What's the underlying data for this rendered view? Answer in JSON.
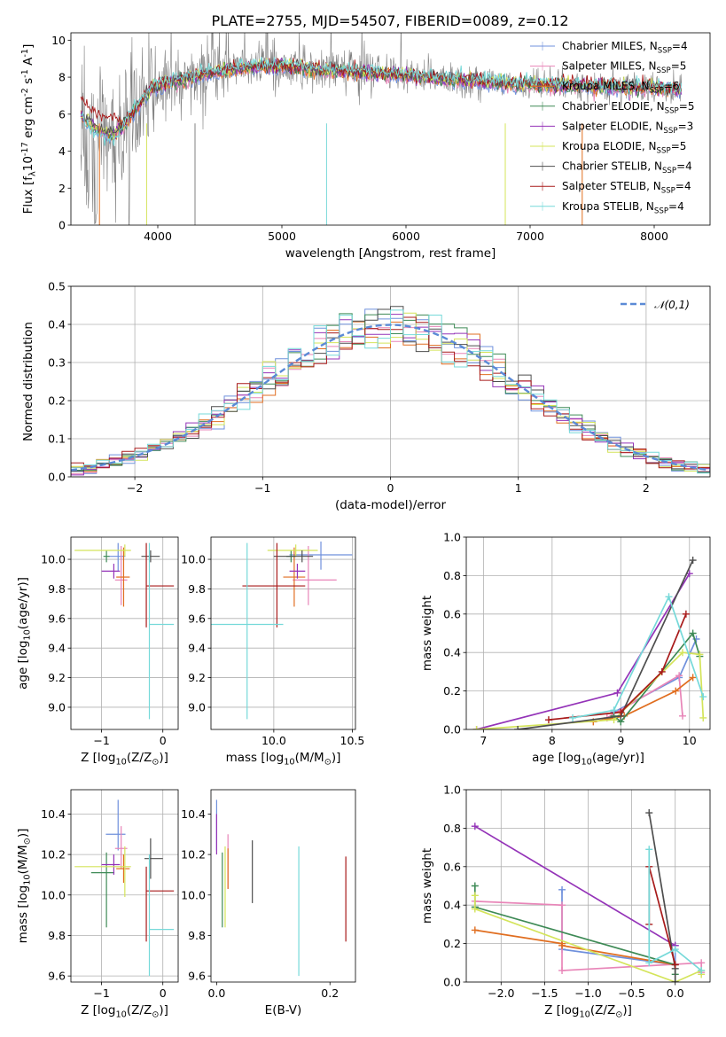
{
  "colors": {
    "Chabrier MILES": "#6f90dc",
    "Salpeter MILES": "#e885b8",
    "Kroupa MILES": "#e06e20",
    "Chabrier ELODIE": "#3e8a56",
    "Salpeter ELODIE": "#9433b8",
    "Kroupa ELODIE": "#d4e45a",
    "Chabrier STELIB": "#4e4e4e",
    "Salpeter STELIB": "#a81a1a",
    "Kroupa STELIB": "#76d9d9"
  },
  "chart_data": [
    {
      "id": "spectrum",
      "type": "line",
      "title": "PLATE=2755, MJD=54507, FIBERID=0089, z=0.12",
      "xlabel": "wavelength [Angstrom, rest frame]",
      "ylabel": "Flux [f$_\\lambda$10$^{-17}$ erg cm$^{-2}$ s$^{-1}$ A$^{-1}$]",
      "xlim": [
        3300,
        8450
      ],
      "ylim": [
        0,
        10.4
      ],
      "xticks": [
        4000,
        5000,
        6000,
        7000,
        8000
      ],
      "yticks": [
        0,
        2,
        4,
        6,
        8,
        10
      ],
      "grid": false,
      "legend": "upper-right",
      "data_color": "#808080",
      "data_range": [
        3380,
        8220
      ],
      "model_continuum": {
        "x": [
          3380,
          3500,
          3650,
          3800,
          3950,
          4050,
          4200,
          4400,
          4600,
          4800,
          5000,
          5300,
          5600,
          6000,
          6500,
          7000,
          7500,
          8000,
          8220
        ],
        "y": [
          5.8,
          5.0,
          4.7,
          6.1,
          7.4,
          7.6,
          7.9,
          8.2,
          8.4,
          8.6,
          8.6,
          8.4,
          8.3,
          8.1,
          7.8,
          7.6,
          7.5,
          7.4,
          7.3
        ]
      },
      "series": [
        {
          "name": "Chabrier MILES, N$_{SSP}$=4"
        },
        {
          "name": "Salpeter MILES, N$_{SSP}$=5"
        },
        {
          "name": "Kroupa MILES, N$_{SSP}$=6"
        },
        {
          "name": "Chabrier ELODIE, N$_{SSP}$=5"
        },
        {
          "name": "Salpeter ELODIE, N$_{SSP}$=3"
        },
        {
          "name": "Kroupa ELODIE, N$_{SSP}$=5"
        },
        {
          "name": "Chabrier STELIB, N$_{SSP}$=4"
        },
        {
          "name": "Salpeter STELIB, N$_{SSP}$=4"
        },
        {
          "name": "Kroupa STELIB, N$_{SSP}$=4"
        }
      ]
    },
    {
      "id": "residuals",
      "type": "histogram",
      "xlabel": "(data-model)/error",
      "ylabel": "Normed distribution",
      "xlim": [
        -2.5,
        2.5
      ],
      "ylim": [
        0,
        0.5
      ],
      "xticks": [
        -2,
        -1,
        0,
        1,
        2
      ],
      "yticks": [
        0.0,
        0.1,
        0.2,
        0.3,
        0.4,
        0.5
      ],
      "grid": true,
      "legend": "upper-right",
      "reference": {
        "name": "$\\mathcal{N}(0,1)$",
        "mean": 0,
        "sigma": 1,
        "color": "#5b8ad6"
      },
      "bin_width": 0.1
    },
    {
      "id": "age-vs-Z",
      "type": "errorbar",
      "xlabel": "Z [log$_{10}$($Z/Z_\\odot$)]",
      "ylabel": "age  [log$_{10}$($age/yr$)]",
      "xlim": [
        -1.5,
        0.25
      ],
      "ylim": [
        8.85,
        10.15
      ],
      "xticks": [
        -1,
        0
      ],
      "yticks": [
        9.0,
        9.2,
        9.4,
        9.6,
        9.8,
        10.0
      ],
      "grid": true,
      "points": [
        {
          "series": "Chabrier MILES",
          "x": -0.73,
          "xerr": [
            0.15,
            0.12
          ],
          "y": 10.02,
          "yerr": [
            0.1,
            0.09
          ]
        },
        {
          "series": "Salpeter MILES",
          "x": -0.68,
          "xerr": [
            0.1,
            0.1
          ],
          "y": 9.86,
          "yerr": [
            0.17,
            0.23
          ]
        },
        {
          "series": "Kroupa MILES",
          "x": -0.64,
          "xerr": [
            0.12,
            0.1
          ],
          "y": 9.88,
          "yerr": [
            0.2,
            0.2
          ]
        },
        {
          "series": "Chabrier ELODIE",
          "x": -0.92,
          "xerr": [
            0.05,
            0.05
          ],
          "y": 10.02,
          "yerr": [
            0.04,
            0.04
          ]
        },
        {
          "series": "Salpeter ELODIE",
          "x": -0.8,
          "xerr": [
            0.2,
            0.1
          ],
          "y": 9.92,
          "yerr": [
            0.05,
            0.05
          ]
        },
        {
          "series": "Kroupa ELODIE",
          "x": -0.62,
          "xerr": [
            0.82,
            0.1
          ],
          "y": 10.06,
          "yerr": [
            0.04,
            0.04
          ]
        },
        {
          "series": "Chabrier STELIB",
          "x": -0.2,
          "xerr": [
            0.15,
            0.15
          ],
          "y": 10.02,
          "yerr": [
            0.04,
            0.04
          ]
        },
        {
          "series": "Salpeter STELIB",
          "x": -0.27,
          "xerr": [
            0.0,
            0.45
          ],
          "y": 9.82,
          "yerr": [
            0.28,
            0.29
          ]
        },
        {
          "series": "Kroupa STELIB",
          "x": -0.22,
          "xerr": [
            0.0,
            0.4
          ],
          "y": 9.56,
          "yerr": [
            0.64,
            0.55
          ]
        }
      ]
    },
    {
      "id": "age-vs-mass",
      "type": "errorbar",
      "xlabel": "mass [log$_{10}$($M/M_\\odot$)]",
      "ylabel": "",
      "xlim": [
        9.6,
        10.52
      ],
      "ylim": [
        8.85,
        10.15
      ],
      "xticks": [
        10.0,
        10.5
      ],
      "yticks": [
        9.0,
        9.2,
        9.4,
        9.6,
        9.8,
        10.0
      ],
      "grid": true,
      "points": [
        {
          "series": "Chabrier MILES",
          "x": 10.3,
          "xerr": [
            0.2,
            0.2
          ],
          "y": 10.03,
          "yerr": [
            0.1,
            0.09
          ]
        },
        {
          "series": "Salpeter MILES",
          "x": 10.22,
          "xerr": [
            0.1,
            0.18
          ],
          "y": 9.86,
          "yerr": [
            0.17,
            0.23
          ]
        },
        {
          "series": "Kroupa MILES",
          "x": 10.13,
          "xerr": [
            0.07,
            0.07
          ],
          "y": 9.88,
          "yerr": [
            0.2,
            0.2
          ]
        },
        {
          "series": "Chabrier ELODIE",
          "x": 10.11,
          "xerr": [
            0.03,
            0.03
          ],
          "y": 10.02,
          "yerr": [
            0.04,
            0.04
          ]
        },
        {
          "series": "Salpeter ELODIE",
          "x": 10.15,
          "xerr": [
            0.05,
            0.05
          ],
          "y": 9.92,
          "yerr": [
            0.05,
            0.05
          ]
        },
        {
          "series": "Kroupa ELODIE",
          "x": 10.14,
          "xerr": [
            0.18,
            0.14
          ],
          "y": 10.06,
          "yerr": [
            0.04,
            0.04
          ]
        },
        {
          "series": "Chabrier STELIB",
          "x": 10.18,
          "xerr": [
            0.18,
            0.07
          ],
          "y": 10.02,
          "yerr": [
            0.04,
            0.04
          ]
        },
        {
          "series": "Salpeter STELIB",
          "x": 10.02,
          "xerr": [
            0.22,
            0.18
          ],
          "y": 9.82,
          "yerr": [
            0.28,
            0.29
          ]
        },
        {
          "series": "Kroupa STELIB",
          "x": 9.83,
          "xerr": [
            0.23,
            0.23
          ],
          "y": 9.56,
          "yerr": [
            0.64,
            0.55
          ]
        }
      ]
    },
    {
      "id": "weight-vs-age",
      "type": "line",
      "xlabel": "age  [log$_{10}$($age/yr$)]",
      "ylabel": "mass weight",
      "xlim": [
        6.75,
        10.3
      ],
      "ylim": [
        0,
        1.0
      ],
      "xticks": [
        7,
        8,
        9,
        10
      ],
      "yticks": [
        0.0,
        0.2,
        0.4,
        0.6,
        0.8,
        1.0
      ],
      "grid": true,
      "series": [
        {
          "name": "Chabrier MILES",
          "x": [
            8.9,
            9.85,
            10.1
          ],
          "y": [
            0.09,
            0.27,
            0.47
          ]
        },
        {
          "name": "Salpeter MILES",
          "x": [
            8.8,
            9.85,
            9.9
          ],
          "y": [
            0.06,
            0.28,
            0.07
          ]
        },
        {
          "name": "Kroupa MILES",
          "x": [
            8.6,
            9.05,
            9.8,
            10.05
          ],
          "y": [
            0.04,
            0.07,
            0.2,
            0.27
          ]
        },
        {
          "name": "Chabrier ELODIE",
          "x": [
            8.9,
            9.0,
            10.05,
            10.15
          ],
          "y": [
            0.07,
            0.04,
            0.5,
            0.38
          ]
        },
        {
          "name": "Salpeter ELODIE",
          "x": [
            6.9,
            8.95,
            10.0
          ],
          "y": [
            0.0,
            0.19,
            0.81
          ]
        },
        {
          "name": "Kroupa ELODIE",
          "x": [
            6.9,
            8.9,
            9.9,
            10.15,
            10.2
          ],
          "y": [
            0.0,
            0.05,
            0.4,
            0.39,
            0.06
          ]
        },
        {
          "name": "Chabrier STELIB",
          "x": [
            7.5,
            9.0,
            10.05
          ],
          "y": [
            0.0,
            0.07,
            0.88
          ]
        },
        {
          "name": "Salpeter STELIB",
          "x": [
            7.95,
            9.0,
            9.6,
            9.95
          ],
          "y": [
            0.05,
            0.09,
            0.3,
            0.6
          ]
        },
        {
          "name": "Kroupa STELIB",
          "x": [
            8.3,
            8.9,
            9.7,
            10.2
          ],
          "y": [
            0.06,
            0.1,
            0.69,
            0.17
          ]
        }
      ]
    },
    {
      "id": "mass-vs-Z",
      "type": "errorbar",
      "xlabel": "Z [log$_{10}$($Z/Z_\\odot$)]",
      "ylabel": "mass [log$_{10}$($M/M_\\odot$)]",
      "xlim": [
        -1.5,
        0.25
      ],
      "ylim": [
        9.57,
        10.52
      ],
      "xticks": [
        -1,
        0
      ],
      "yticks": [
        9.6,
        9.8,
        10.0,
        10.2,
        10.4
      ],
      "grid": true,
      "points": [
        {
          "series": "Chabrier MILES",
          "x": -0.73,
          "xerr": [
            0.2,
            0.12
          ],
          "y": 10.3,
          "yerr": [
            0.08,
            0.17
          ]
        },
        {
          "series": "Salpeter MILES",
          "x": -0.68,
          "xerr": [
            0.1,
            0.1
          ],
          "y": 10.23,
          "yerr": [
            0.1,
            0.11
          ]
        },
        {
          "series": "Kroupa MILES",
          "x": -0.64,
          "xerr": [
            0.12,
            0.1
          ],
          "y": 10.13,
          "yerr": [
            0.07,
            0.07
          ]
        },
        {
          "series": "Chabrier ELODIE",
          "x": -0.92,
          "xerr": [
            0.25,
            0.13
          ],
          "y": 10.11,
          "yerr": [
            0.27,
            0.1
          ]
        },
        {
          "series": "Salpeter ELODIE",
          "x": -0.8,
          "xerr": [
            0.2,
            0.1
          ],
          "y": 10.15,
          "yerr": [
            0.05,
            0.05
          ]
        },
        {
          "series": "Kroupa ELODIE",
          "x": -0.62,
          "xerr": [
            0.82,
            0.1
          ],
          "y": 10.14,
          "yerr": [
            0.15,
            0.1
          ]
        },
        {
          "series": "Chabrier STELIB",
          "x": -0.2,
          "xerr": [
            0.1,
            0.2
          ],
          "y": 10.18,
          "yerr": [
            0.1,
            0.1
          ]
        },
        {
          "series": "Salpeter STELIB",
          "x": -0.27,
          "xerr": [
            0.0,
            0.45
          ],
          "y": 10.02,
          "yerr": [
            0.25,
            0.12
          ]
        },
        {
          "series": "Kroupa STELIB",
          "x": -0.22,
          "xerr": [
            0.0,
            0.4
          ],
          "y": 9.83,
          "yerr": [
            0.23,
            0.37
          ]
        }
      ]
    },
    {
      "id": "mass-vs-ebv",
      "type": "errorbar",
      "xlabel": "E(B-V)",
      "ylabel": "",
      "xlim": [
        -0.01,
        0.245
      ],
      "ylim": [
        9.57,
        10.52
      ],
      "xticks": [
        0.0,
        0.2
      ],
      "yticks": [
        9.6,
        9.8,
        10.0,
        10.2,
        10.4
      ],
      "grid": false,
      "points": [
        {
          "series": "Chabrier MILES",
          "x": 0.0,
          "y": 10.3,
          "yerr": [
            0.08,
            0.17
          ]
        },
        {
          "series": "Salpeter MILES",
          "x": 0.02,
          "y": 10.23,
          "yerr": [
            0.2,
            0.07
          ]
        },
        {
          "series": "Kroupa MILES",
          "x": 0.02,
          "y": 10.13,
          "yerr": [
            0.1,
            0.1
          ]
        },
        {
          "series": "Chabrier ELODIE",
          "x": 0.01,
          "y": 10.11,
          "yerr": [
            0.27,
            0.1
          ]
        },
        {
          "series": "Salpeter ELODIE",
          "x": 0.0,
          "y": 10.3,
          "yerr": [
            0.1,
            0.1
          ]
        },
        {
          "series": "Kroupa ELODIE",
          "x": 0.015,
          "y": 10.14,
          "yerr": [
            0.3,
            0.1
          ]
        },
        {
          "series": "Chabrier STELIB",
          "x": 0.063,
          "y": 10.18,
          "yerr": [
            0.22,
            0.09
          ]
        },
        {
          "series": "Salpeter STELIB",
          "x": 0.228,
          "y": 10.02,
          "yerr": [
            0.25,
            0.17
          ]
        },
        {
          "series": "Kroupa STELIB",
          "x": 0.145,
          "y": 9.83,
          "yerr": [
            0.23,
            0.41
          ]
        }
      ]
    },
    {
      "id": "weight-vs-Z",
      "type": "line",
      "xlabel": "Z [log$_{10}$($Z/Z_\\odot$)]",
      "ylabel": "mass weight",
      "xlim": [
        -2.4,
        0.4
      ],
      "ylim": [
        0,
        1.0
      ],
      "xticks": [
        -2.0,
        -1.5,
        -1.0,
        -0.5,
        0.0
      ],
      "yticks": [
        0.0,
        0.2,
        0.4,
        0.6,
        0.8,
        1.0
      ],
      "grid": true,
      "series": [
        {
          "name": "Chabrier MILES",
          "x": [
            -1.3,
            -1.3,
            0.0,
            0.0
          ],
          "y": [
            0.48,
            0.17,
            0.09,
            0.19
          ]
        },
        {
          "name": "Salpeter MILES",
          "x": [
            -2.3,
            -1.3,
            -1.3,
            0.3,
            0.3
          ],
          "y": [
            0.42,
            0.4,
            0.06,
            0.1,
            0.05
          ]
        },
        {
          "name": "Kroupa MILES",
          "x": [
            -2.3,
            -1.3,
            -1.3,
            0.0
          ],
          "y": [
            0.27,
            0.2,
            0.19,
            0.09
          ]
        },
        {
          "name": "Chabrier ELODIE",
          "x": [
            -2.3,
            -2.3,
            0.0,
            0.0
          ],
          "y": [
            0.5,
            0.39,
            0.09,
            0.04
          ]
        },
        {
          "name": "Salpeter ELODIE",
          "x": [
            -2.3,
            0.0
          ],
          "y": [
            0.81,
            0.19
          ]
        },
        {
          "name": "Kroupa ELODIE",
          "x": [
            -2.3,
            -2.3,
            0.0,
            0.3,
            0.3
          ],
          "y": [
            0.45,
            0.38,
            0.0,
            0.06,
            0.04
          ]
        },
        {
          "name": "Chabrier STELIB",
          "x": [
            -0.3,
            0.0,
            0.0
          ],
          "y": [
            0.88,
            0.07,
            0.0
          ]
        },
        {
          "name": "Salpeter STELIB",
          "x": [
            -0.3,
            -0.3,
            0.0
          ],
          "y": [
            0.3,
            0.6,
            0.09
          ]
        },
        {
          "name": "Kroupa STELIB",
          "x": [
            -0.3,
            -0.3,
            0.0,
            0.3
          ],
          "y": [
            0.69,
            0.1,
            0.17,
            0.06
          ]
        }
      ]
    }
  ]
}
